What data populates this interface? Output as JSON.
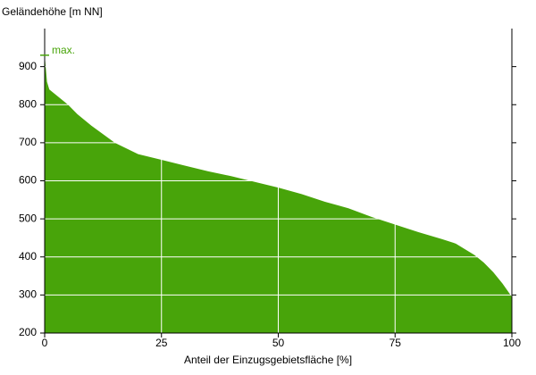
{
  "chart_data": {
    "type": "area",
    "y_label": "Geländehöhe [m NN]",
    "x_label": "Anteil der Einzugsgebietsfläche [%]",
    "x": [
      0,
      0.5,
      1,
      3,
      5,
      7,
      10,
      15,
      20,
      25,
      30,
      35,
      40,
      44,
      50,
      55,
      60,
      65,
      70,
      75,
      80,
      85,
      88,
      90,
      92,
      94,
      96,
      98,
      100
    ],
    "series": [
      {
        "name": "Geländehöhe",
        "color": "#48a40a",
        "values": [
          930,
          860,
          840,
          820,
          800,
          775,
          745,
          700,
          670,
          655,
          640,
          625,
          612,
          600,
          582,
          565,
          545,
          528,
          505,
          485,
          465,
          447,
          435,
          420,
          405,
          385,
          360,
          330,
          295
        ]
      }
    ],
    "annotations": [
      {
        "text": "max.",
        "value": 930
      }
    ],
    "xlim": [
      0,
      100
    ],
    "xticks": [
      0,
      25,
      50,
      75,
      100
    ],
    "ylim": [
      200,
      1000
    ],
    "yticks": [
      200,
      300,
      400,
      500,
      600,
      700,
      800,
      900
    ],
    "grid": true,
    "grid_color": "#ffffff"
  }
}
